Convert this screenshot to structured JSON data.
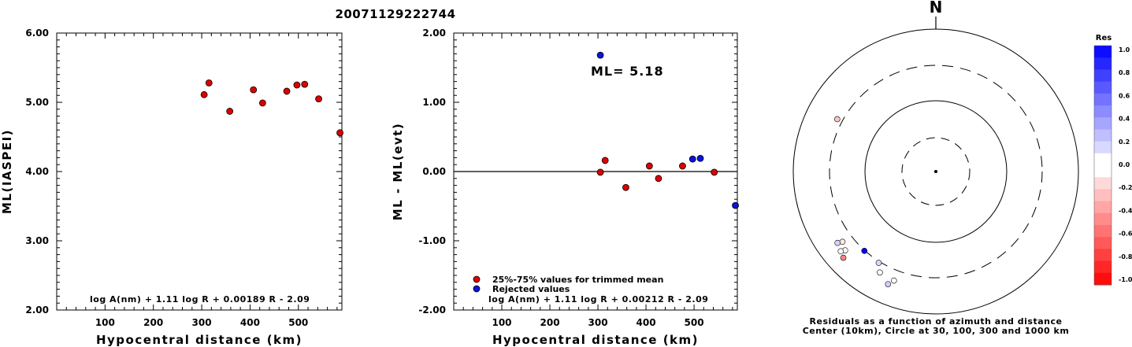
{
  "event_id": "20071129222744",
  "colors": {
    "accepted": "#dd0000",
    "rejected": "#0a14dd",
    "axis": "#000000"
  },
  "chart_data": [
    {
      "type": "scatter",
      "title": "",
      "xlabel": "Hypocentral distance (km)",
      "ylabel": "ML(IASPEI)",
      "xlim": [
        0,
        590
      ],
      "ylim": [
        2.0,
        6.0
      ],
      "x_ticks": [
        100,
        200,
        300,
        400,
        500
      ],
      "y_ticks": [
        "2.00",
        "3.00",
        "4.00",
        "5.00",
        "6.00"
      ],
      "formula": "log A(nm) + 1.11 log R + 0.00189 R - 2.09",
      "series": [
        {
          "points": [
            [
              305,
              5.11
            ],
            [
              315,
              5.28
            ],
            [
              358,
              4.87
            ],
            [
              407,
              5.18
            ],
            [
              426,
              4.99
            ],
            [
              476,
              5.16
            ],
            [
              497,
              5.25
            ],
            [
              513,
              5.26
            ],
            [
              542,
              5.05
            ],
            [
              586,
              4.56
            ]
          ]
        }
      ]
    },
    {
      "type": "scatter",
      "title": "",
      "xlabel": "Hypocentral distance (km)",
      "ylabel": "ML - ML(evt)",
      "xlim": [
        0,
        590
      ],
      "ylim": [
        -2.0,
        2.0
      ],
      "x_ticks": [
        100,
        200,
        300,
        400,
        500
      ],
      "y_ticks": [
        "-2.00",
        "-1.00",
        "0.00",
        "1.00",
        "2.00"
      ],
      "annotation": "ML= 5.18",
      "formula": "log A(nm) + 1.11 log R + 0.00212 R - 2.09",
      "legend": [
        "25%-75% values for trimmed mean",
        "Rejected values"
      ],
      "series": [
        {
          "name": "25%-75% values for trimmed mean",
          "points": [
            [
              305,
              -0.01
            ],
            [
              315,
              0.16
            ],
            [
              358,
              -0.23
            ],
            [
              407,
              0.08
            ],
            [
              426,
              -0.1
            ],
            [
              476,
              0.08
            ],
            [
              542,
              -0.01
            ]
          ]
        },
        {
          "name": "Rejected values",
          "points": [
            [
              305,
              1.68
            ],
            [
              497,
              0.18
            ],
            [
              513,
              0.19
            ],
            [
              586,
              -0.49
            ]
          ]
        }
      ]
    },
    {
      "type": "scatter",
      "polar": true,
      "north_label": "N",
      "caption_line1": "Residuals as a function of azimuth and distance",
      "caption_line2": "Center (10km), Circle at 30, 100, 300 and 1000 km",
      "rings_km": [
        30,
        100,
        300,
        1000
      ],
      "colorbar": {
        "title": "Res",
        "labels": [
          "1.0",
          "0.8",
          "0.6",
          "0.4",
          "0.2",
          "0.0",
          "-0.2",
          "-0.4",
          "-0.6",
          "-0.8",
          "-1.0"
        ]
      },
      "stations": [
        {
          "azimuth": 298,
          "distance_km": 358,
          "residual": -0.23
        },
        {
          "azimuth": 229,
          "distance_km": 476,
          "residual": 0.08
        },
        {
          "azimuth": 233,
          "distance_km": 426,
          "residual": -0.1
        },
        {
          "azimuth": 230,
          "distance_km": 542,
          "residual": -0.01
        },
        {
          "azimuth": 227,
          "distance_km": 586,
          "residual": -0.49
        },
        {
          "azimuth": 234,
          "distance_km": 497,
          "residual": 0.18
        },
        {
          "azimuth": 222,
          "distance_km": 305,
          "residual": 1.68
        },
        {
          "azimuth": 209,
          "distance_km": 407,
          "residual": 0.08
        },
        {
          "azimuth": 203,
          "distance_km": 513,
          "residual": 0.19
        },
        {
          "azimuth": 201,
          "distance_km": 426,
          "residual": -0.01
        },
        {
          "azimuth": 212,
          "distance_km": 315,
          "residual": 0.16
        }
      ]
    }
  ]
}
